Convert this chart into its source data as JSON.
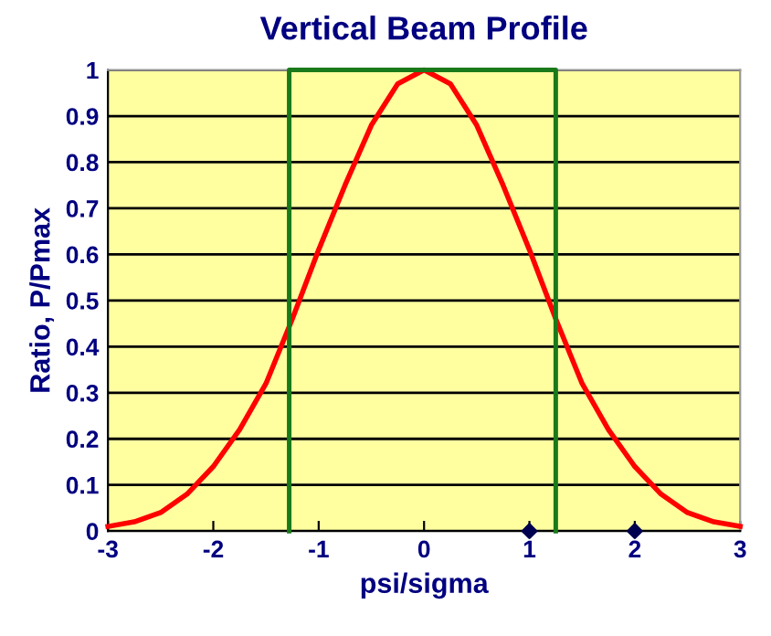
{
  "chart_data": {
    "type": "line",
    "title": "Vertical Beam Profile",
    "xlabel": "psi/sigma",
    "ylabel": "Ratio, P/Pmax",
    "xlim": [
      -3,
      3
    ],
    "xticks": [
      -3,
      -2,
      -1,
      0,
      1,
      2,
      3
    ],
    "ylim": [
      0,
      1
    ],
    "yticks": [
      0,
      0.1,
      0.2,
      0.3,
      0.4,
      0.5,
      0.6,
      0.7,
      0.8,
      0.9,
      1
    ],
    "grid": "y",
    "legend": false,
    "series": [
      {
        "color": "#ff0000",
        "x": [
          -3,
          -2.75,
          -2.5,
          -2.25,
          -2,
          -1.75,
          -1.5,
          -1.25,
          -1,
          -0.75,
          -0.5,
          -0.25,
          0,
          0.25,
          0.5,
          0.75,
          1,
          1.25,
          1.5,
          1.75,
          2,
          2.25,
          2.5,
          2.75,
          3
        ],
        "values": [
          0.01,
          0.02,
          0.04,
          0.08,
          0.14,
          0.22,
          0.32,
          0.46,
          0.61,
          0.75,
          0.88,
          0.97,
          1,
          0.97,
          0.88,
          0.75,
          0.61,
          0.46,
          0.32,
          0.22,
          0.14,
          0.08,
          0.04,
          0.02,
          0.01
        ]
      },
      {
        "type": "line",
        "color": "#1a7a1a",
        "x": [
          -1.28,
          -1.28,
          1.25,
          1.25
        ],
        "values": [
          0,
          1,
          1,
          0
        ]
      },
      {
        "type": "scatter",
        "color": "#000050",
        "marker": "diamond",
        "x": [
          1,
          2
        ],
        "values": [
          0,
          0
        ]
      }
    ]
  }
}
